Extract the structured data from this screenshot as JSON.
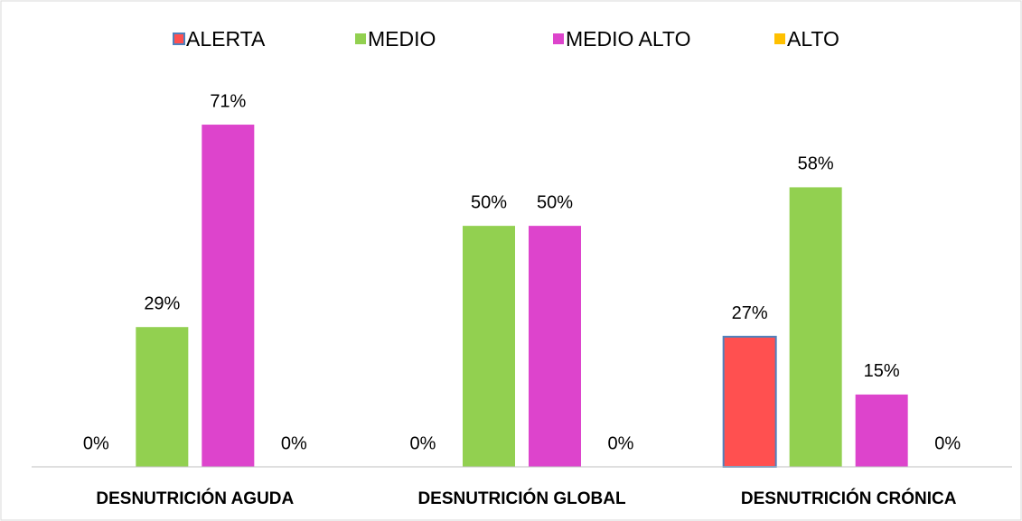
{
  "chart_data": {
    "type": "bar",
    "categories": [
      "DESNUTRICIÓN AGUDA",
      "DESNUTRICIÓN GLOBAL",
      "DESNUTRICIÓN CRÓNICA"
    ],
    "series": [
      {
        "name": "ALERTA",
        "color": "#ff5050",
        "edgecolor": "#4f81bd",
        "values": [
          0,
          0,
          27
        ],
        "value_labels": [
          "0%",
          "0%",
          "27%"
        ]
      },
      {
        "name": "MEDIO",
        "color": "#92d050",
        "values": [
          29,
          50,
          58
        ],
        "value_labels": [
          "29%",
          "50%",
          "58%"
        ]
      },
      {
        "name": "MEDIO ALTO",
        "color": "#dd44cc",
        "values": [
          71,
          50,
          15
        ],
        "value_labels": [
          "71%",
          "50%",
          "15%"
        ]
      },
      {
        "name": "ALTO",
        "color": "#ffc000",
        "values": [
          0,
          0,
          0
        ],
        "value_labels": [
          "0%",
          "0%",
          "0%"
        ]
      }
    ],
    "ylim": [
      0,
      80
    ],
    "legend": "top"
  }
}
